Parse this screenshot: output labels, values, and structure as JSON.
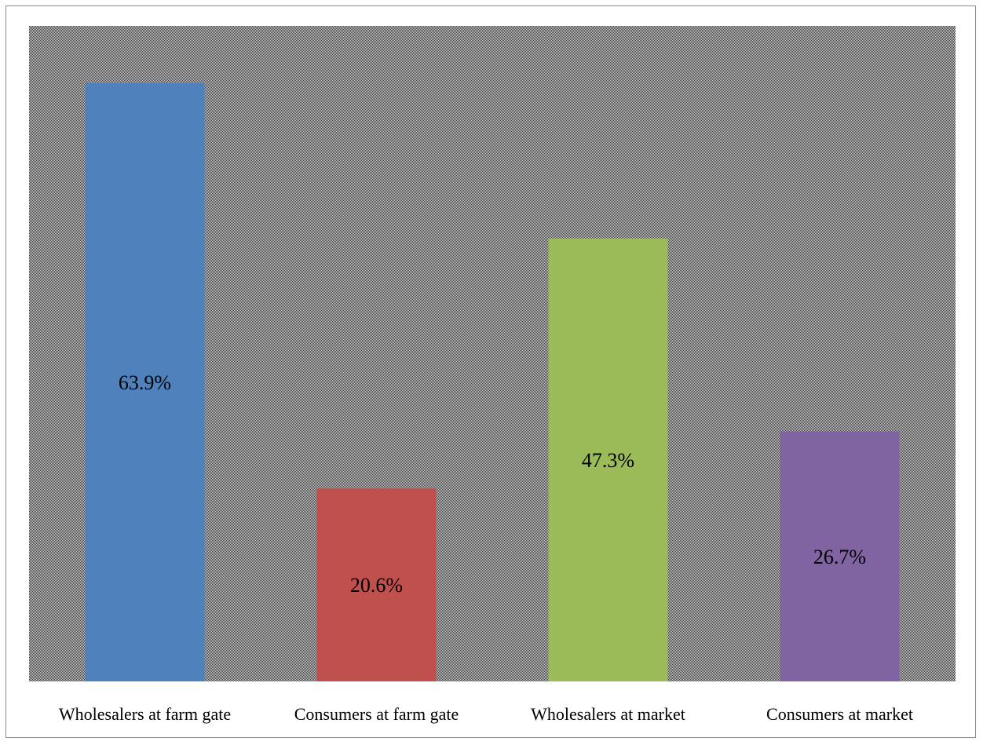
{
  "chart_data": {
    "type": "bar",
    "categories": [
      "Wholesalers at farm gate",
      "Consumers at farm gate",
      "Wholesalers at market",
      "Consumers at market"
    ],
    "values": [
      63.9,
      20.6,
      47.3,
      26.7
    ],
    "value_labels": [
      "63.9%",
      "20.6%",
      "47.3%",
      "26.7%"
    ],
    "colors": [
      "#4f81bd",
      "#c0504d",
      "#9bbb59",
      "#8064a2"
    ],
    "plot_background": "checkered gray pattern",
    "title": "",
    "xlabel": "",
    "ylabel": "",
    "ylim": [
      0,
      70
    ],
    "grid": false,
    "legend": "none"
  }
}
